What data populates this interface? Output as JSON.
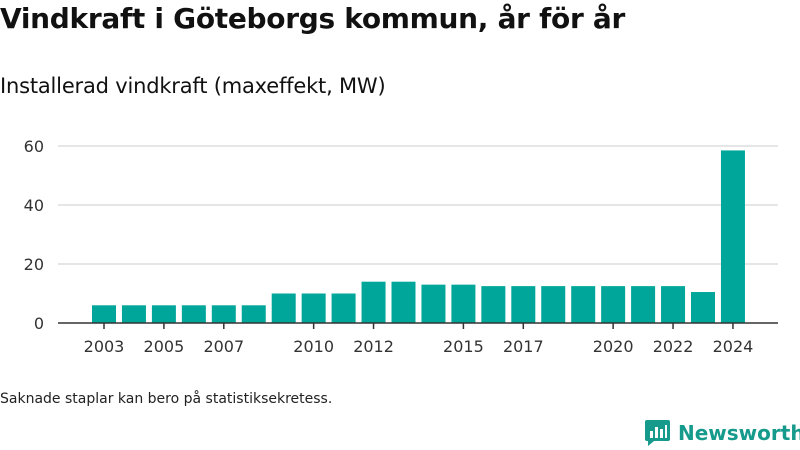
{
  "title": "Vindkraft i Göteborgs kommun, år för år",
  "subtitle": "Installerad vindkraft (maxeffekt, MW)",
  "footnote": "Saknade staplar kan bero på statistiksekretess.",
  "brand": {
    "name": "Newsworthy",
    "color": "#159a8c"
  },
  "colors": {
    "bar": "#00a69a",
    "grid": "#dddddd",
    "axis": "#333333"
  },
  "chart_data": {
    "type": "bar",
    "title": "Installerad vindkraft (maxeffekt, MW)",
    "xlabel": "",
    "ylabel": "",
    "categories": [
      "2003",
      "2004",
      "2005",
      "2006",
      "2007",
      "2008",
      "2009",
      "2010",
      "2011",
      "2012",
      "2013",
      "2014",
      "2015",
      "2016",
      "2017",
      "2018",
      "2019",
      "2020",
      "2021",
      "2022",
      "2023",
      "2024"
    ],
    "values": [
      6,
      6,
      6,
      6,
      6,
      6,
      10,
      10,
      10,
      14,
      14,
      13,
      13,
      12.5,
      12.5,
      12.5,
      12.5,
      12.5,
      12.5,
      12.5,
      10.5,
      58.5
    ],
    "x_tick_labels": [
      "2003",
      "2005",
      "2007",
      "2010",
      "2012",
      "2015",
      "2017",
      "2020",
      "2022",
      "2024"
    ],
    "y_ticks": [
      0,
      20,
      40,
      60
    ],
    "ylim": [
      0,
      60
    ],
    "grid": true,
    "legend": "none"
  }
}
